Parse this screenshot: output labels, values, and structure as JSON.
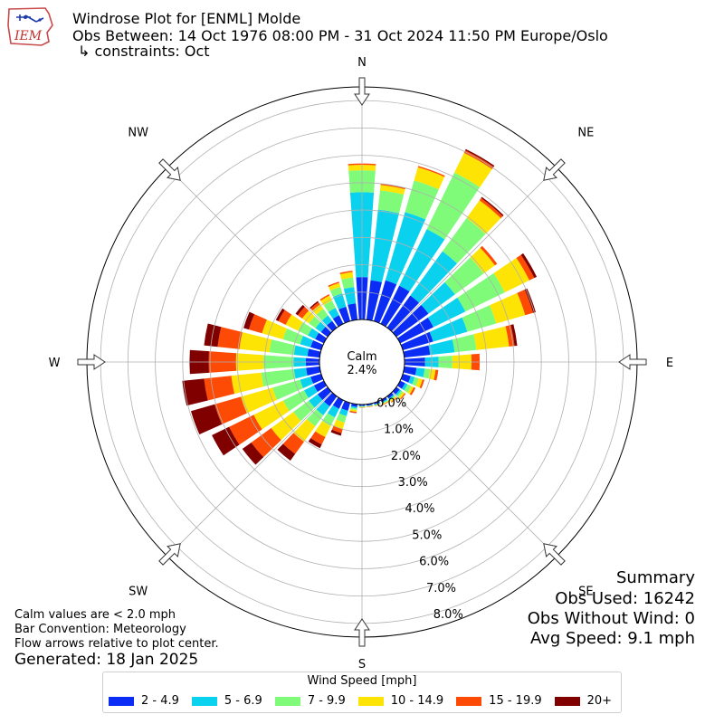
{
  "header": {
    "title": "Windrose Plot for [ENML] Molde",
    "obs_between": "Obs Between: 14 Oct 1976 08:00 PM - 31 Oct 2024 11:50 PM Europe/Oslo",
    "constraints": "↳ constraints: Oct",
    "logo_text": "IEM"
  },
  "summary": {
    "heading": "Summary",
    "obs_used": "Obs Used: 16242",
    "obs_without_wind": "Obs Without Wind: 0",
    "avg_speed": "Avg Speed: 9.1 mph"
  },
  "notes": {
    "calm_values": "Calm values are < 2.0 mph",
    "bar_convention": "Bar Convention: Meteorology",
    "flow_arrows": "Flow arrows relative to plot center.",
    "generated": "Generated: 18 Jan 2025"
  },
  "legend": {
    "title": "Wind Speed [mph]",
    "items": [
      {
        "label": "2 - 4.9",
        "color": "#0b2cf5"
      },
      {
        "label": "5 - 6.9",
        "color": "#0ad2ee"
      },
      {
        "label": "7 - 9.9",
        "color": "#80fb79"
      },
      {
        "label": "10 - 14.9",
        "color": "#fde404"
      },
      {
        "label": "15 - 19.9",
        "color": "#fd4a04"
      },
      {
        "label": "20+",
        "color": "#800000"
      }
    ]
  },
  "chart_data": {
    "type": "windrose",
    "calm_label": "Calm",
    "calm_percent": "2.4%",
    "directions": [
      "N",
      "NE",
      "E",
      "SE",
      "S",
      "SW",
      "W",
      "NW"
    ],
    "radial_ticks": [
      "0.0%",
      "1.0%",
      "2.0%",
      "3.0%",
      "4.0%",
      "5.0%",
      "6.0%",
      "7.0%",
      "8.0%"
    ],
    "rmax": 8.5,
    "rmin": 0,
    "sector_width_deg": 10,
    "speed_bins": [
      "2 - 4.9",
      "5 - 6.9",
      "7 - 9.9",
      "10 - 14.9",
      "15 - 19.9",
      "20+"
    ],
    "sectors": [
      {
        "dir": 0,
        "cum": [
          1.55,
          4.65,
          5.45,
          5.65,
          5.7,
          5.7
        ]
      },
      {
        "dir": 10,
        "cum": [
          1.45,
          4.05,
          4.75,
          4.95,
          5.0,
          5.0
        ]
      },
      {
        "dir": 20,
        "cum": [
          1.55,
          4.15,
          5.35,
          5.85,
          5.9,
          5.9
        ]
      },
      {
        "dir": 30,
        "cum": [
          1.55,
          3.85,
          6.15,
          6.95,
          7.05,
          7.1
        ]
      },
      {
        "dir": 40,
        "cum": [
          1.45,
          3.45,
          4.95,
          5.75,
          5.85,
          5.9
        ]
      },
      {
        "dir": 50,
        "cum": [
          1.45,
          2.65,
          3.95,
          4.45,
          4.55,
          4.55
        ]
      },
      {
        "dir": 60,
        "cum": [
          1.35,
          2.65,
          4.25,
          5.25,
          5.45,
          5.55
        ]
      },
      {
        "dir": 70,
        "cum": [
          1.15,
          2.45,
          3.55,
          4.65,
          4.95,
          5.05
        ]
      },
      {
        "dir": 80,
        "cum": [
          0.95,
          1.85,
          2.65,
          3.85,
          4.05,
          4.15
        ]
      },
      {
        "dir": 90,
        "cum": [
          0.75,
          1.25,
          1.75,
          2.45,
          2.75,
          2.75
        ]
      },
      {
        "dir": 100,
        "cum": [
          0.45,
          0.75,
          0.95,
          1.15,
          1.25,
          1.25
        ]
      },
      {
        "dir": 110,
        "cum": [
          0.3,
          0.45,
          0.6,
          0.75,
          0.82,
          0.82
        ]
      },
      {
        "dir": 120,
        "cum": [
          0.2,
          0.3,
          0.45,
          0.55,
          0.62,
          0.62
        ]
      },
      {
        "dir": 130,
        "cum": [
          0.15,
          0.22,
          0.3,
          0.38,
          0.42,
          0.42
        ]
      },
      {
        "dir": 140,
        "cum": [
          0.1,
          0.15,
          0.2,
          0.25,
          0.28,
          0.28
        ]
      },
      {
        "dir": 150,
        "cum": [
          0.08,
          0.12,
          0.15,
          0.18,
          0.2,
          0.2
        ]
      },
      {
        "dir": 160,
        "cum": [
          0.06,
          0.09,
          0.11,
          0.13,
          0.14,
          0.14
        ]
      },
      {
        "dir": 170,
        "cum": [
          0.05,
          0.07,
          0.08,
          0.1,
          0.11,
          0.11
        ]
      },
      {
        "dir": 180,
        "cum": [
          0.05,
          0.07,
          0.09,
          0.11,
          0.12,
          0.12
        ]
      },
      {
        "dir": 190,
        "cum": [
          0.1,
          0.16,
          0.22,
          0.28,
          0.32,
          0.33
        ]
      },
      {
        "dir": 200,
        "cum": [
          0.3,
          0.5,
          0.75,
          1.0,
          1.15,
          1.25
        ]
      },
      {
        "dir": 210,
        "cum": [
          0.35,
          0.7,
          1.05,
          1.5,
          1.8,
          1.95
        ]
      },
      {
        "dir": 220,
        "cum": [
          0.45,
          0.85,
          1.35,
          2.05,
          2.6,
          2.9
        ]
      },
      {
        "dir": 230,
        "cum": [
          0.45,
          0.85,
          1.55,
          2.55,
          3.45,
          3.85
        ]
      },
      {
        "dir": 240,
        "cum": [
          0.4,
          0.8,
          1.65,
          2.85,
          3.85,
          4.55
        ]
      },
      {
        "dir": 250,
        "cum": [
          0.4,
          0.8,
          1.85,
          3.05,
          4.05,
          4.95
        ]
      },
      {
        "dir": 260,
        "cum": [
          0.5,
          0.95,
          2.15,
          3.25,
          4.25,
          5.05
        ]
      },
      {
        "dir": 270,
        "cum": [
          0.5,
          0.95,
          2.05,
          3.05,
          4.05,
          4.75
        ]
      },
      {
        "dir": 280,
        "cum": [
          0.45,
          0.95,
          1.85,
          2.95,
          3.75,
          4.25
        ]
      },
      {
        "dir": 290,
        "cum": [
          0.4,
          0.8,
          1.45,
          2.25,
          2.75,
          2.95
        ]
      },
      {
        "dir": 300,
        "cum": [
          0.35,
          0.65,
          1.05,
          1.55,
          1.85,
          1.95
        ]
      },
      {
        "dir": 310,
        "cum": [
          0.3,
          0.55,
          0.85,
          1.15,
          1.35,
          1.45
        ]
      },
      {
        "dir": 320,
        "cum": [
          0.3,
          0.55,
          0.85,
          1.05,
          1.15,
          1.2
        ]
      },
      {
        "dir": 330,
        "cum": [
          0.35,
          0.65,
          0.95,
          1.15,
          1.2,
          1.2
        ]
      },
      {
        "dir": 340,
        "cum": [
          0.55,
          1.05,
          1.3,
          1.45,
          1.5,
          1.5
        ]
      },
      {
        "dir": 350,
        "cum": [
          0.6,
          1.2,
          1.55,
          1.75,
          1.8,
          1.8
        ]
      }
    ]
  }
}
